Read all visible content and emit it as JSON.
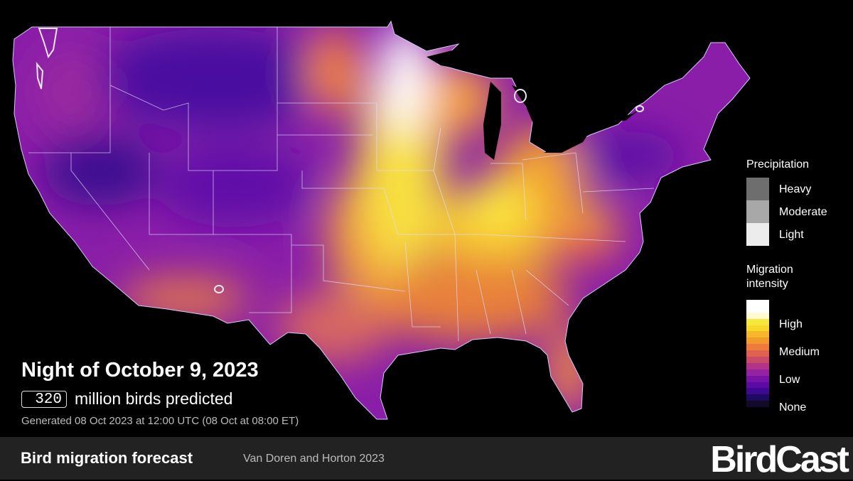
{
  "map": {
    "region": "Contiguous United States",
    "colors": {
      "none": "#000004",
      "low": "#5c0fa0",
      "medium": "#f07d3a",
      "high": "#fcf53a",
      "peak": "#ffffff",
      "state_lines": "#d8c8ff",
      "background": "#000000"
    }
  },
  "header": {
    "title": "Night of October 9, 2023",
    "bird_count": "320",
    "bird_count_label": "million birds predicted",
    "generated": "Generated 08 Oct 2023 at 12:00 UTC (08 Oct at 08:00 ET)"
  },
  "legend": {
    "precipitation": {
      "title": "Precipitation",
      "levels": [
        {
          "label": "Heavy",
          "color": "#6e6e6e"
        },
        {
          "label": "Moderate",
          "color": "#a8a8a8"
        },
        {
          "label": "Light",
          "color": "#ececec"
        }
      ]
    },
    "migration": {
      "title_line1": "Migration",
      "title_line2": "intensity",
      "labels": [
        "High",
        "Medium",
        "Low",
        "None"
      ],
      "ramp": [
        "#ffffff",
        "#ffffff",
        "#fefbd0",
        "#f7e73a",
        "#f5d82a",
        "#f8b62a",
        "#f39a2c",
        "#ec7b3c",
        "#df6150",
        "#cb4a68",
        "#b2348a",
        "#96229f",
        "#7612a8",
        "#5b0aa3",
        "#3e0890",
        "#1e0a60",
        "#120a28",
        "#000004"
      ]
    }
  },
  "footer": {
    "title": "Bird migration forecast",
    "citation": "Van Doren and Horton 2023",
    "logo": "BirdCast"
  }
}
